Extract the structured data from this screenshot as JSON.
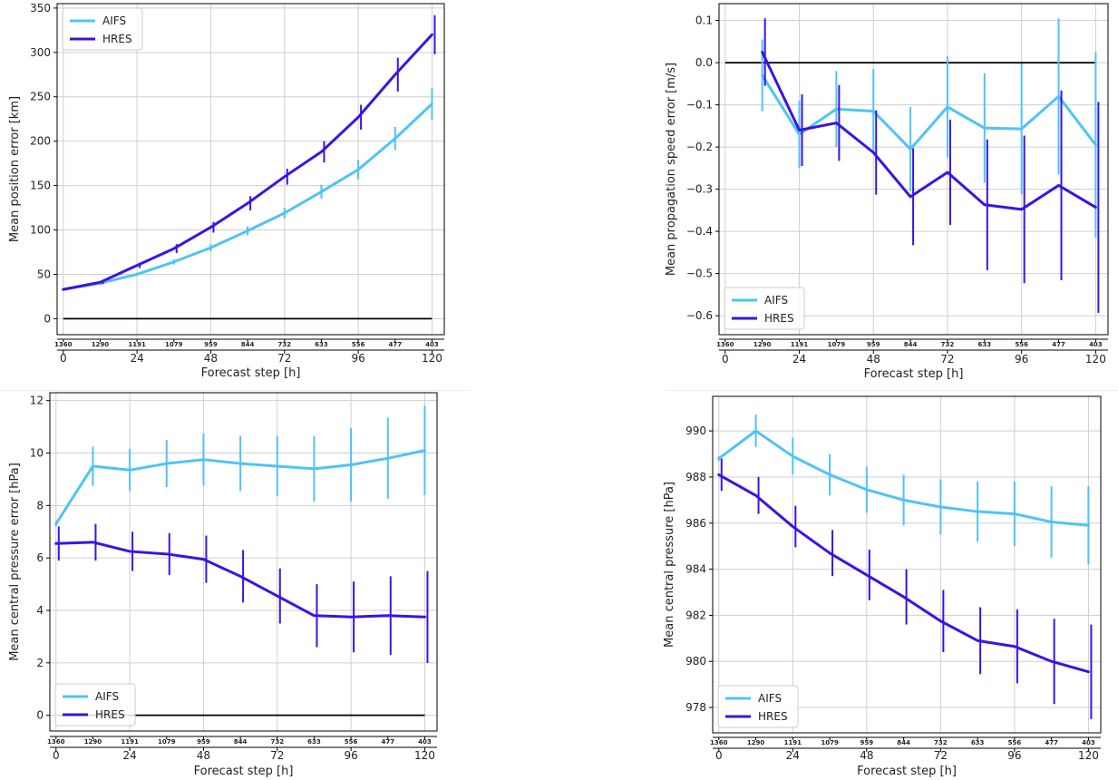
{
  "colors": {
    "AIFS": "#4fc3f7",
    "HRES": "#3a13e6",
    "zero": "#000000",
    "grid": "#cfcfcf"
  },
  "chart_data": [
    {
      "type": "line",
      "ylabel": "Mean position error [km]",
      "xlabel": "Forecast step [h]",
      "ylim": [
        -18,
        355
      ],
      "yticks": [
        0,
        50,
        100,
        150,
        200,
        250,
        300,
        350
      ],
      "ytick_labels": [
        "0",
        "50",
        "100",
        "150",
        "200",
        "250",
        "300",
        "350"
      ],
      "xlim": [
        -2,
        124
      ],
      "xticks": [
        0,
        24,
        48,
        72,
        96,
        120
      ],
      "xtick_labels": [
        "0",
        "24",
        "48",
        "72",
        "96",
        "120"
      ],
      "sample_counts": [
        "1360",
        "1290",
        "1191",
        "1079",
        "959",
        "844",
        "732",
        "633",
        "556",
        "477",
        "403"
      ],
      "zero_line": true,
      "legend_position": "upper-left",
      "series": [
        {
          "name": "AIFS",
          "x": [
            0,
            12,
            24,
            36,
            48,
            60,
            72,
            84,
            96,
            108,
            120
          ],
          "y": [
            33,
            40,
            50,
            64,
            80,
            99,
            119,
            143,
            168,
            203,
            242
          ],
          "yerr": [
            1,
            2,
            2,
            3,
            4,
            5,
            6,
            8,
            11,
            13,
            18
          ]
        },
        {
          "name": "HRES",
          "x": [
            0,
            12,
            24,
            36,
            48,
            60,
            72,
            84,
            96,
            108,
            120
          ],
          "y": [
            33,
            41,
            60,
            79,
            103,
            130,
            160,
            188,
            227,
            275,
            320
          ],
          "yerr": [
            1,
            2,
            3,
            5,
            6,
            8,
            9,
            12,
            14,
            19,
            22
          ]
        }
      ]
    },
    {
      "type": "line",
      "ylabel": "Mean propagation speed error [m/s]",
      "xlabel": "Forecast step [h]",
      "ylim": [
        -0.645,
        0.14
      ],
      "yticks": [
        0.1,
        0.0,
        -0.1,
        -0.2,
        -0.3,
        -0.4,
        -0.5,
        -0.6
      ],
      "ytick_labels": [
        "0.1",
        "0.0",
        "−0.1",
        "−0.2",
        "−0.3",
        "−0.4",
        "−0.5",
        "−0.6"
      ],
      "xlim": [
        -2,
        124
      ],
      "xticks": [
        0,
        24,
        48,
        72,
        96,
        120
      ],
      "xtick_labels": [
        "0",
        "24",
        "48",
        "72",
        "96",
        "120"
      ],
      "sample_counts": [
        "1360",
        "1290",
        "1191",
        "1079",
        "959",
        "844",
        "732",
        "633",
        "556",
        "477",
        "403"
      ],
      "zero_line": true,
      "legend_position": "lower-left",
      "series": [
        {
          "name": "AIFS",
          "x": [
            12,
            24,
            36,
            48,
            60,
            72,
            84,
            96,
            108,
            120
          ],
          "y": [
            -0.03,
            -0.17,
            -0.11,
            -0.115,
            -0.205,
            -0.105,
            -0.155,
            -0.157,
            -0.08,
            -0.195
          ],
          "yerr": [
            0.085,
            0.08,
            0.09,
            0.1,
            0.1,
            0.12,
            0.13,
            0.155,
            0.185,
            0.22
          ]
        },
        {
          "name": "HRES",
          "x": [
            12,
            24,
            36,
            48,
            60,
            72,
            84,
            96,
            108,
            120
          ],
          "y": [
            0.025,
            -0.16,
            -0.143,
            -0.213,
            -0.318,
            -0.26,
            -0.337,
            -0.348,
            -0.291,
            -0.343
          ],
          "yerr": [
            0.08,
            0.085,
            0.09,
            0.1,
            0.115,
            0.125,
            0.155,
            0.175,
            0.225,
            0.25
          ]
        }
      ]
    },
    {
      "type": "line",
      "ylabel": "Mean central pressure error [hPa]",
      "xlabel": "Forecast step [h]",
      "ylim": [
        -0.6,
        12.3
      ],
      "yticks": [
        0,
        2,
        4,
        6,
        8,
        10,
        12
      ],
      "ytick_labels": [
        "0",
        "2",
        "4",
        "6",
        "8",
        "10",
        "12"
      ],
      "xlim": [
        -2,
        124
      ],
      "xticks": [
        0,
        24,
        48,
        72,
        96,
        120
      ],
      "xtick_labels": [
        "0",
        "24",
        "48",
        "72",
        "96",
        "120"
      ],
      "sample_counts": [
        "1360",
        "1290",
        "1191",
        "1079",
        "959",
        "844",
        "732",
        "633",
        "556",
        "477",
        "403"
      ],
      "zero_line": true,
      "legend_position": "lower-left",
      "series": [
        {
          "name": "AIFS",
          "x": [
            0,
            12,
            24,
            36,
            48,
            60,
            72,
            84,
            96,
            108,
            120
          ],
          "y": [
            7.3,
            9.5,
            9.35,
            9.6,
            9.75,
            9.6,
            9.5,
            9.4,
            9.55,
            9.8,
            10.1
          ],
          "yerr": [
            0.1,
            0.75,
            0.8,
            0.9,
            1.0,
            1.05,
            1.15,
            1.25,
            1.4,
            1.55,
            1.7
          ]
        },
        {
          "name": "HRES",
          "x": [
            0,
            12,
            24,
            36,
            48,
            60,
            72,
            84,
            96,
            108,
            120
          ],
          "y": [
            6.55,
            6.6,
            6.25,
            6.15,
            5.95,
            5.3,
            4.55,
            3.8,
            3.75,
            3.8,
            3.75
          ],
          "yerr": [
            0.65,
            0.7,
            0.75,
            0.8,
            0.9,
            1.0,
            1.05,
            1.2,
            1.35,
            1.5,
            1.75
          ]
        }
      ]
    },
    {
      "type": "line",
      "ylabel": "Mean central pressure [hPa]",
      "xlabel": "Forecast step [h]",
      "ylim": [
        976.9,
        991.5
      ],
      "yticks": [
        978,
        980,
        982,
        984,
        986,
        988,
        990
      ],
      "ytick_labels": [
        "978",
        "980",
        "982",
        "984",
        "986",
        "988",
        "990"
      ],
      "xlim": [
        -2,
        124
      ],
      "xticks": [
        0,
        24,
        48,
        72,
        96,
        120
      ],
      "xtick_labels": [
        "0",
        "24",
        "48",
        "72",
        "96",
        "120"
      ],
      "sample_counts": [
        "1360",
        "1290",
        "1191",
        "1079",
        "959",
        "844",
        "732",
        "633",
        "556",
        "477",
        "403"
      ],
      "zero_line": false,
      "legend_position": "lower-left",
      "series": [
        {
          "name": "AIFS",
          "x": [
            0,
            12,
            24,
            36,
            48,
            60,
            72,
            84,
            96,
            108,
            120
          ],
          "y": [
            988.8,
            990.0,
            988.9,
            988.1,
            987.45,
            987.0,
            986.7,
            986.5,
            986.4,
            986.05,
            985.9
          ],
          "yerr": [
            0.1,
            0.7,
            0.8,
            0.9,
            1.0,
            1.1,
            1.2,
            1.3,
            1.4,
            1.55,
            1.7
          ]
        },
        {
          "name": "HRES",
          "x": [
            0,
            12,
            24,
            36,
            48,
            60,
            72,
            84,
            96,
            108,
            120
          ],
          "y": [
            988.1,
            987.2,
            985.85,
            984.7,
            983.75,
            982.8,
            981.75,
            980.9,
            980.65,
            980.0,
            979.55
          ],
          "yerr": [
            0.7,
            0.8,
            0.9,
            1.0,
            1.1,
            1.2,
            1.35,
            1.45,
            1.6,
            1.85,
            2.05
          ]
        }
      ]
    }
  ]
}
